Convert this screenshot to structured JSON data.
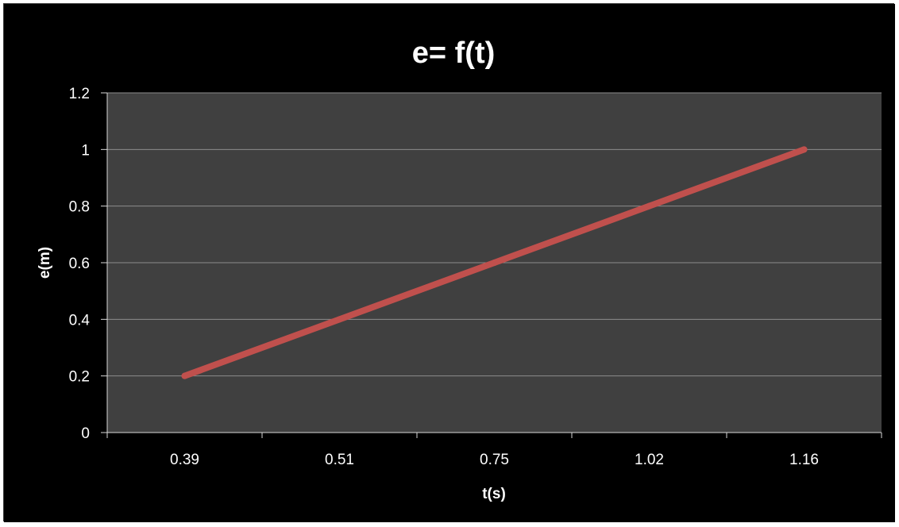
{
  "chart_data": {
    "type": "line",
    "title": "e= f(t)",
    "xlabel": "t(s)",
    "ylabel": "e(m)",
    "categories": [
      "0.39",
      "0.51",
      "0.75",
      "1.02",
      "1.16"
    ],
    "series": [
      {
        "values": [
          0.2,
          0.4,
          0.6,
          0.8,
          1.0
        ]
      }
    ],
    "ylim": [
      0,
      1.2
    ],
    "yticks": [
      "0",
      "0.2",
      "0.4",
      "0.6",
      "0.8",
      "1",
      "1.2"
    ],
    "grid": true,
    "legend": "none",
    "colors": {
      "background": "#000000",
      "plot_area": "#404040",
      "gridline": "#8c8c8c",
      "axis": "#d9d9d9",
      "text": "#ffffff",
      "series_line": "#c0504d"
    }
  }
}
